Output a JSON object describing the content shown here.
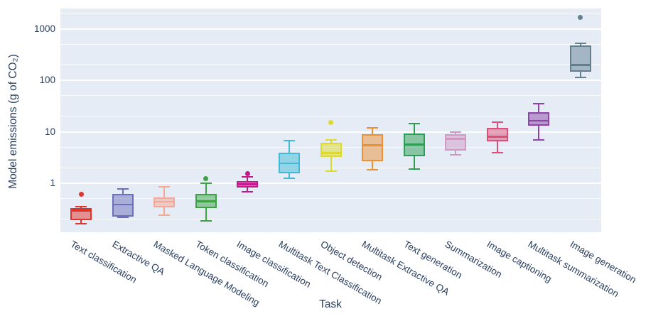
{
  "chart_data": {
    "type": "box",
    "title": "",
    "xlabel": "Task",
    "ylabel": "Model emissions (g of CO₂)",
    "yscale": "log",
    "ylim": [
      0.113,
      2495
    ],
    "grid": "on",
    "legend": "none",
    "gridline_values": [
      0.2,
      0.5,
      1,
      2,
      5,
      10,
      20,
      50,
      100,
      200,
      500,
      1000,
      2000
    ],
    "ytick_values": [
      1,
      10,
      100,
      1000
    ],
    "ytick_labels": [
      "1",
      "10",
      "100",
      "1000"
    ],
    "categories": [
      "Text classification",
      "Extractive QA",
      "Masked Language Modeling",
      "Token classification",
      "Image classification",
      "Multitask Text Classification",
      "Object detection",
      "Multitask Extractive QA",
      "Text generation",
      "Summarization",
      "Image captioning",
      "Multitask summarization",
      "Image generation"
    ],
    "boxes": [
      {
        "label": "Text classification",
        "color": "#e0342b",
        "low": 0.165,
        "q1": 0.195,
        "median": 0.3,
        "q3": 0.33,
        "high": 0.35,
        "outliers": [
          0.62
        ]
      },
      {
        "label": "Extractive QA",
        "color": "#6c70b8",
        "low": 0.22,
        "q1": 0.23,
        "median": 0.39,
        "q3": 0.62,
        "high": 0.78,
        "outliers": []
      },
      {
        "label": "Masked Language Modeling",
        "color": "#f4a895",
        "low": 0.24,
        "q1": 0.345,
        "median": 0.44,
        "q3": 0.54,
        "high": 0.85,
        "outliers": []
      },
      {
        "label": "Token classification",
        "color": "#3da244",
        "low": 0.19,
        "q1": 0.33,
        "median": 0.45,
        "q3": 0.62,
        "high": 1.02,
        "outliers": [
          1.25
        ]
      },
      {
        "label": "Image classification",
        "color": "#c01a8a",
        "low": 0.69,
        "q1": 0.83,
        "median": 0.97,
        "q3": 1.11,
        "high": 1.35,
        "outliers": [
          1.55
        ]
      },
      {
        "label": "Multitask Text Classification",
        "color": "#41b9d6",
        "low": 1.26,
        "q1": 1.56,
        "median": 2.45,
        "q3": 3.95,
        "high": 6.7,
        "outliers": []
      },
      {
        "label": "Object detection",
        "color": "#ddda2d",
        "low": 1.73,
        "q1": 3.27,
        "median": 3.87,
        "q3": 6.2,
        "high": 7.1,
        "outliers": [
          15.4
        ]
      },
      {
        "label": "Multitask Extractive QA",
        "color": "#eb9035",
        "low": 1.85,
        "q1": 2.73,
        "median": 5.56,
        "q3": 9.0,
        "high": 12.0,
        "outliers": []
      },
      {
        "label": "Text generation",
        "color": "#2b9e54",
        "low": 1.92,
        "q1": 3.37,
        "median": 5.73,
        "q3": 9.2,
        "high": 14.4,
        "outliers": []
      },
      {
        "label": "Summarization",
        "color": "#cf9ac2",
        "low": 3.63,
        "q1": 4.3,
        "median": 7.3,
        "q3": 9.0,
        "high": 10.0,
        "outliers": []
      },
      {
        "label": "Image captioning",
        "color": "#dd4f78",
        "low": 3.96,
        "q1": 6.6,
        "median": 8.1,
        "q3": 12.0,
        "high": 15.3,
        "outliers": []
      },
      {
        "label": "Multitask summarization",
        "color": "#8e44a8",
        "low": 7.1,
        "q1": 13.4,
        "median": 16.5,
        "q3": 24.4,
        "high": 35.7,
        "outliers": []
      },
      {
        "label": "Image generation",
        "color": "#64808f",
        "low": 114,
        "q1": 149,
        "median": 199,
        "q3": 474,
        "high": 532,
        "outliers": [
          1690
        ]
      }
    ]
  },
  "colors": {
    "plot_bg": "#e5ecf6",
    "gridline": "#ffffff",
    "axis_text": "#2a3f5f",
    "page_bg": "#ffffff"
  }
}
